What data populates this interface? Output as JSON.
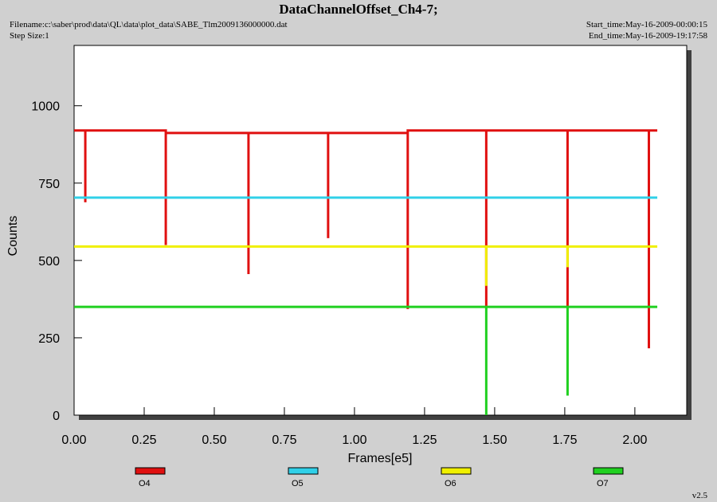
{
  "chart_data": {
    "type": "line",
    "title": "DataChannelOffset_Ch4-7;",
    "filename": "Filename:c:\\saber\\prod\\data\\QL\\data\\plot_data\\SABE_Tlm2009136000000.dat",
    "step_size": "Step Size:1",
    "start_time": "Start_time:May-16-2009-00:00:15",
    "end_time": "End_time:May-16-2009-19:17:58",
    "version": "v2.5",
    "x_label": "Frames[e5]",
    "y_label": "Counts",
    "xlim": [
      0,
      2.185
    ],
    "ylim": [
      0,
      1195
    ],
    "xticks": [
      {
        "value": 0,
        "label": "0.00"
      },
      {
        "value": 0.25,
        "label": "0.25"
      },
      {
        "value": 0.5,
        "label": "0.50"
      },
      {
        "value": 0.75,
        "label": "0.75"
      },
      {
        "value": 1,
        "label": "1.00"
      },
      {
        "value": 1.25,
        "label": "1.25"
      },
      {
        "value": 1.5,
        "label": "1.50"
      },
      {
        "value": 1.75,
        "label": "1.75"
      },
      {
        "value": 2,
        "label": "2.00"
      }
    ],
    "yticks": [
      0,
      250,
      500,
      750,
      1000
    ],
    "series": [
      {
        "name": "O4",
        "color": "#e01010",
        "x": [
          0,
          0.04,
          0.04,
          0.04,
          0.327,
          0.327,
          0.327,
          0.622,
          0.622,
          0.622,
          0.906,
          0.906,
          0.906,
          1.19,
          1.19,
          1.19,
          1.47,
          1.47,
          1.47,
          1.76,
          1.76,
          1.76,
          2.05,
          2.05,
          2.05,
          2.08
        ],
        "values": [
          920,
          920,
          688,
          920,
          920,
          550,
          912,
          912,
          456,
          912,
          912,
          572,
          912,
          912,
          343,
          920,
          920,
          350,
          920,
          920,
          350,
          920,
          920,
          216,
          920,
          920
        ]
      },
      {
        "name": "O5",
        "color": "#30d0e8",
        "x": [
          0,
          2.08
        ],
        "values": [
          703,
          703
        ]
      },
      {
        "name": "O6",
        "color": "#f0f000",
        "x": [
          0,
          1.47,
          1.47,
          1.47,
          1.76,
          1.76,
          1.76,
          2.08
        ],
        "values": [
          545,
          545,
          418,
          545,
          545,
          478,
          545,
          545
        ]
      },
      {
        "name": "O7",
        "color": "#20d020",
        "x": [
          0,
          1.47,
          1.47,
          1.47,
          1.76,
          1.76,
          1.76,
          2.08
        ],
        "values": [
          350,
          350,
          0,
          350,
          350,
          63,
          350,
          350
        ]
      }
    ]
  }
}
